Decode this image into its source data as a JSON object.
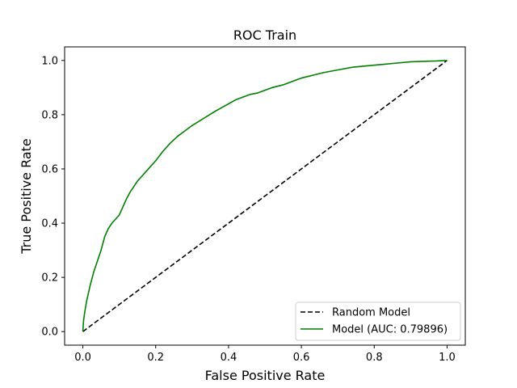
{
  "chart_data": {
    "type": "line",
    "title": "ROC Train",
    "xlabel": "False Positive Rate",
    "ylabel": "True Positive Rate",
    "xlim": [
      -0.05,
      1.05
    ],
    "ylim": [
      -0.05,
      1.05
    ],
    "xticks": [
      0.0,
      0.2,
      0.4,
      0.6,
      0.8,
      1.0
    ],
    "yticks": [
      0.0,
      0.2,
      0.4,
      0.6,
      0.8,
      1.0
    ],
    "xtick_labels": [
      "0.0",
      "0.2",
      "0.4",
      "0.6",
      "0.8",
      "1.0"
    ],
    "ytick_labels": [
      "0.0",
      "0.2",
      "0.4",
      "0.6",
      "0.8",
      "1.0"
    ],
    "grid": false,
    "legend_position": "lower-right",
    "series": [
      {
        "name": "Random Model",
        "color": "#000000",
        "style": "dashed",
        "x": [
          0.0,
          1.0
        ],
        "y": [
          0.0,
          1.0
        ]
      },
      {
        "name": "Model (AUC: 0.79896)",
        "color": "#008000",
        "style": "solid",
        "x": [
          0.0,
          0.002,
          0.005,
          0.01,
          0.015,
          0.02,
          0.03,
          0.04,
          0.05,
          0.06,
          0.07,
          0.08,
          0.09,
          0.1,
          0.11,
          0.12,
          0.13,
          0.14,
          0.15,
          0.16,
          0.18,
          0.2,
          0.22,
          0.24,
          0.26,
          0.28,
          0.3,
          0.33,
          0.36,
          0.38,
          0.4,
          0.42,
          0.44,
          0.46,
          0.48,
          0.5,
          0.52,
          0.55,
          0.58,
          0.6,
          0.63,
          0.66,
          0.7,
          0.74,
          0.78,
          0.82,
          0.86,
          0.9,
          0.94,
          0.97,
          1.0
        ],
        "y": [
          0.0,
          0.04,
          0.07,
          0.11,
          0.14,
          0.17,
          0.22,
          0.26,
          0.3,
          0.35,
          0.38,
          0.4,
          0.415,
          0.43,
          0.46,
          0.49,
          0.515,
          0.535,
          0.555,
          0.57,
          0.6,
          0.63,
          0.665,
          0.695,
          0.72,
          0.74,
          0.76,
          0.785,
          0.81,
          0.825,
          0.84,
          0.855,
          0.865,
          0.875,
          0.88,
          0.89,
          0.9,
          0.91,
          0.925,
          0.935,
          0.945,
          0.955,
          0.965,
          0.975,
          0.98,
          0.985,
          0.99,
          0.995,
          0.997,
          0.998,
          1.0
        ]
      }
    ]
  }
}
